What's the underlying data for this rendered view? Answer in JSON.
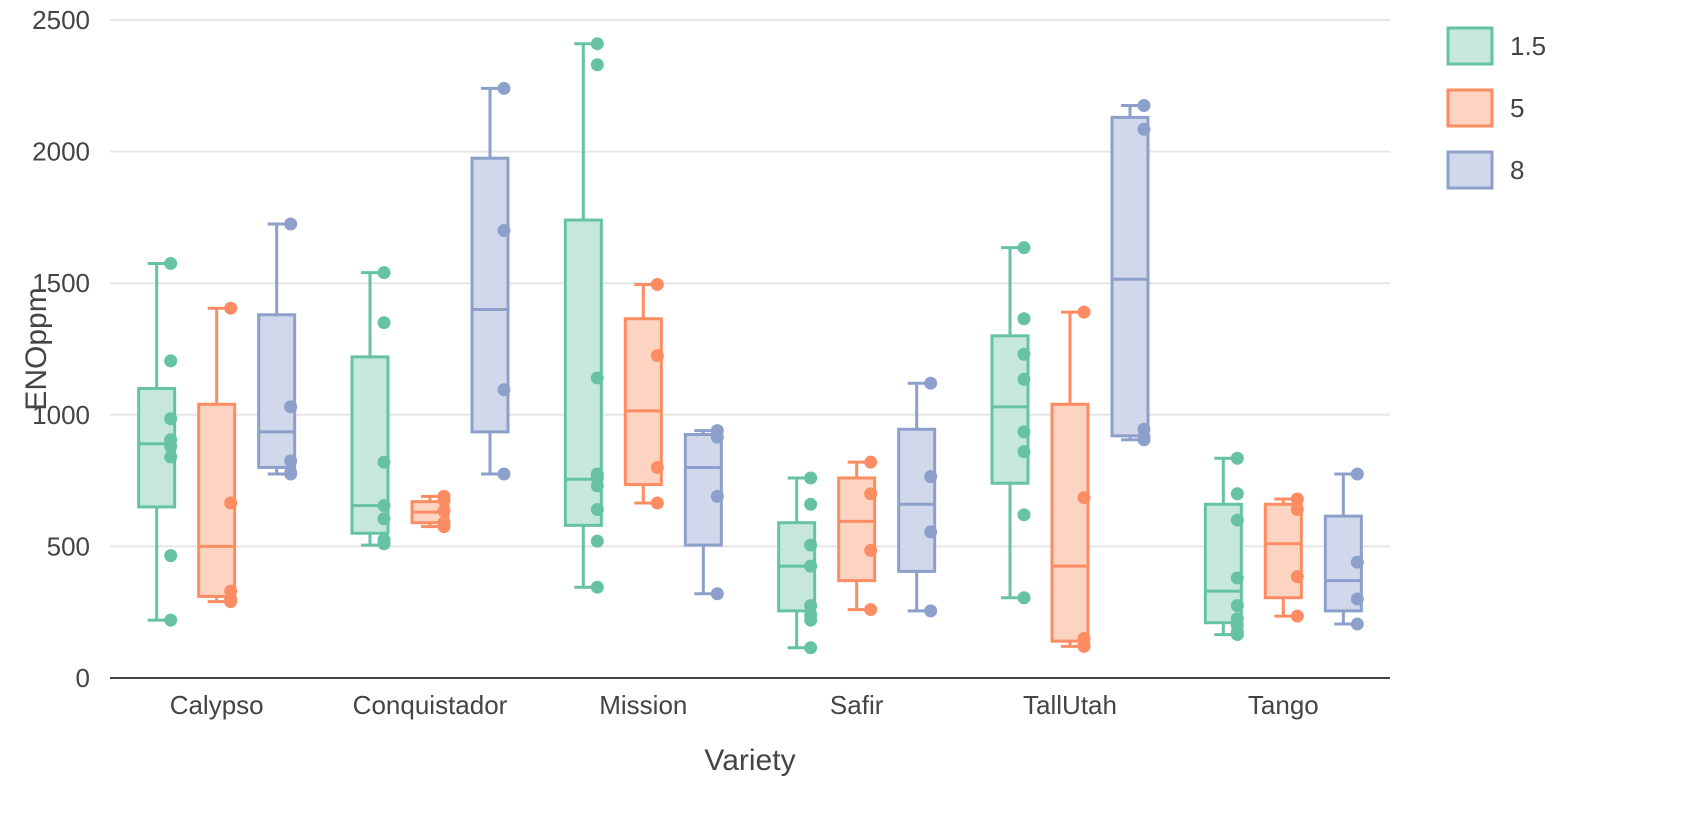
{
  "chart_data": {
    "type": "box",
    "xlabel": "Variety",
    "ylabel": "ENOppm",
    "ylim": [
      0,
      2500
    ],
    "yticks": [
      0,
      500,
      1000,
      1500,
      2000,
      2500
    ],
    "grid": true,
    "legend_position": "top-right",
    "categories": [
      "Calypso",
      "Conquistador",
      "Mission",
      "Safir",
      "TallUtah",
      "Tango"
    ],
    "series": [
      {
        "name": "1.5",
        "color": "#66c2a5",
        "fill": "#c6e8dc",
        "boxes": [
          {
            "min": 220,
            "q1": 650,
            "median": 890,
            "q3": 1100,
            "max": 1575,
            "points": [
              1575,
              1205,
              985,
              905,
              880,
              840,
              465,
              220
            ]
          },
          {
            "min": 505,
            "q1": 550,
            "median": 655,
            "q3": 1220,
            "max": 1540,
            "points": [
              1540,
              1350,
              820,
              655,
              605,
              525,
              510
            ]
          },
          {
            "min": 345,
            "q1": 580,
            "median": 755,
            "q3": 1740,
            "max": 2410,
            "points": [
              2410,
              2330,
              1140,
              775,
              760,
              730,
              640,
              520,
              345
            ]
          },
          {
            "min": 115,
            "q1": 255,
            "median": 425,
            "q3": 590,
            "max": 760,
            "points": [
              760,
              660,
              505,
              425,
              275,
              240,
              220,
              115
            ]
          },
          {
            "min": 305,
            "q1": 740,
            "median": 1030,
            "q3": 1300,
            "max": 1635,
            "points": [
              1635,
              1365,
              1230,
              1135,
              935,
              860,
              620,
              305
            ]
          },
          {
            "min": 165,
            "q1": 210,
            "median": 330,
            "q3": 660,
            "max": 835,
            "points": [
              835,
              700,
              600,
              380,
              275,
              225,
              200,
              175,
              165
            ]
          }
        ]
      },
      {
        "name": "5",
        "color": "#fc8d62",
        "fill": "#fdd3c2",
        "boxes": [
          {
            "min": 290,
            "q1": 310,
            "median": 500,
            "q3": 1040,
            "max": 1405,
            "points": [
              1405,
              665,
              330,
              300,
              290
            ]
          },
          {
            "min": 575,
            "q1": 590,
            "median": 630,
            "q3": 670,
            "max": 690,
            "points": [
              690,
              675,
              635,
              590,
              575
            ]
          },
          {
            "min": 665,
            "q1": 735,
            "median": 1015,
            "q3": 1365,
            "max": 1495,
            "points": [
              1495,
              1225,
              800,
              665
            ]
          },
          {
            "min": 260,
            "q1": 370,
            "median": 595,
            "q3": 760,
            "max": 820,
            "points": [
              820,
              700,
              485,
              260
            ]
          },
          {
            "min": 120,
            "q1": 140,
            "median": 425,
            "q3": 1040,
            "max": 1390,
            "points": [
              1390,
              685,
              150,
              125,
              120
            ]
          },
          {
            "min": 235,
            "q1": 305,
            "median": 510,
            "q3": 660,
            "max": 680,
            "points": [
              680,
              640,
              385,
              235
            ]
          }
        ]
      },
      {
        "name": "8",
        "color": "#8da0cb",
        "fill": "#d1d8eb",
        "boxes": [
          {
            "min": 775,
            "q1": 800,
            "median": 935,
            "q3": 1380,
            "max": 1725,
            "points": [
              1725,
              1030,
              825,
              780,
              775
            ]
          },
          {
            "min": 775,
            "q1": 935,
            "median": 1400,
            "q3": 1975,
            "max": 2240,
            "points": [
              2240,
              1700,
              1095,
              775
            ]
          },
          {
            "min": 320,
            "q1": 505,
            "median": 800,
            "q3": 925,
            "max": 940,
            "points": [
              940,
              915,
              690,
              320
            ]
          },
          {
            "min": 255,
            "q1": 405,
            "median": 660,
            "q3": 945,
            "max": 1120,
            "points": [
              1120,
              765,
              555,
              255
            ]
          },
          {
            "min": 905,
            "q1": 920,
            "median": 1515,
            "q3": 2130,
            "max": 2175,
            "points": [
              2175,
              2085,
              945,
              915,
              905
            ]
          },
          {
            "min": 205,
            "q1": 255,
            "median": 370,
            "q3": 615,
            "max": 775,
            "points": [
              775,
              440,
              300,
              205
            ]
          }
        ]
      }
    ]
  }
}
